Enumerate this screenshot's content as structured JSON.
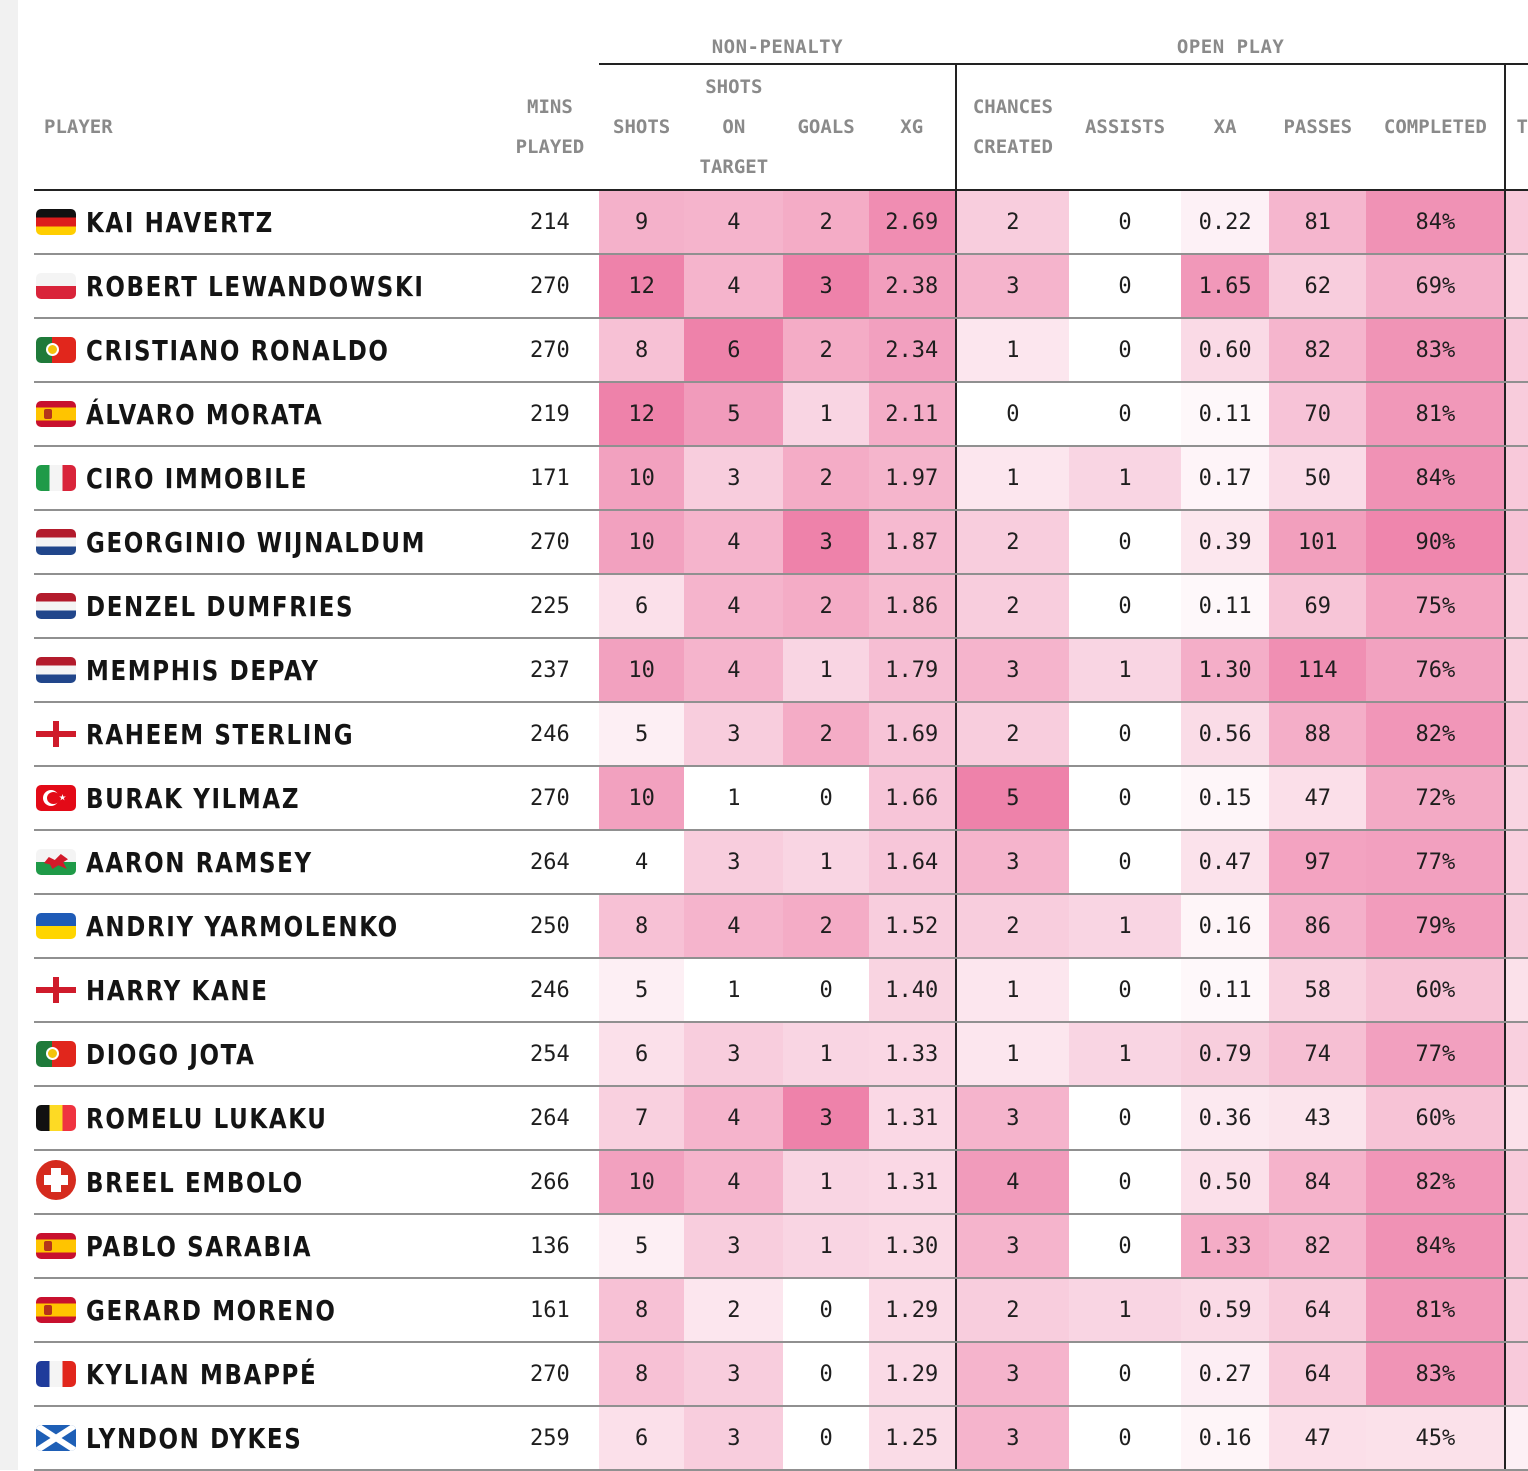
{
  "header": {
    "group_nonpenalty": "NON-PENALTY",
    "group_openplay": "OPEN PLAY",
    "player": "PLAYER",
    "mins": [
      "MINS",
      "PLAYED"
    ],
    "shots": "SHOTS",
    "sot": [
      "SHOTS",
      "ON",
      "TARGET"
    ],
    "goals": "GOALS",
    "xg": "XG",
    "chances": [
      "CHANCES",
      "CREATED"
    ],
    "assists": "ASSISTS",
    "xa": "XA",
    "passes": "PASSES",
    "completed": "COMPLETED",
    "cutoff": "T"
  },
  "rows": [
    {
      "name": "KAI HAVERTZ",
      "flag": "germany",
      "mins": "214",
      "shots": "9",
      "sot": "4",
      "goals": "2",
      "xg": "2.69",
      "chances": "2",
      "assists": "0",
      "xa": "0.22",
      "passes": "81",
      "completed": "84%"
    },
    {
      "name": "ROBERT LEWANDOWSKI",
      "flag": "poland",
      "mins": "270",
      "shots": "12",
      "sot": "4",
      "goals": "3",
      "xg": "2.38",
      "chances": "3",
      "assists": "0",
      "xa": "1.65",
      "passes": "62",
      "completed": "69%"
    },
    {
      "name": "CRISTIANO RONALDO",
      "flag": "portugal",
      "mins": "270",
      "shots": "8",
      "sot": "6",
      "goals": "2",
      "xg": "2.34",
      "chances": "1",
      "assists": "0",
      "xa": "0.60",
      "passes": "82",
      "completed": "83%"
    },
    {
      "name": "ÁLVARO MORATA",
      "flag": "spain",
      "mins": "219",
      "shots": "12",
      "sot": "5",
      "goals": "1",
      "xg": "2.11",
      "chances": "0",
      "assists": "0",
      "xa": "0.11",
      "passes": "70",
      "completed": "81%"
    },
    {
      "name": "CIRO IMMOBILE",
      "flag": "italy",
      "mins": "171",
      "shots": "10",
      "sot": "3",
      "goals": "2",
      "xg": "1.97",
      "chances": "1",
      "assists": "1",
      "xa": "0.17",
      "passes": "50",
      "completed": "84%"
    },
    {
      "name": "GEORGINIO WIJNALDUM",
      "flag": "netherlands",
      "mins": "270",
      "shots": "10",
      "sot": "4",
      "goals": "3",
      "xg": "1.87",
      "chances": "2",
      "assists": "0",
      "xa": "0.39",
      "passes": "101",
      "completed": "90%"
    },
    {
      "name": "DENZEL DUMFRIES",
      "flag": "netherlands",
      "mins": "225",
      "shots": "6",
      "sot": "4",
      "goals": "2",
      "xg": "1.86",
      "chances": "2",
      "assists": "0",
      "xa": "0.11",
      "passes": "69",
      "completed": "75%"
    },
    {
      "name": "MEMPHIS DEPAY",
      "flag": "netherlands",
      "mins": "237",
      "shots": "10",
      "sot": "4",
      "goals": "1",
      "xg": "1.79",
      "chances": "3",
      "assists": "1",
      "xa": "1.30",
      "passes": "114",
      "completed": "76%"
    },
    {
      "name": "RAHEEM STERLING",
      "flag": "england",
      "mins": "246",
      "shots": "5",
      "sot": "3",
      "goals": "2",
      "xg": "1.69",
      "chances": "2",
      "assists": "0",
      "xa": "0.56",
      "passes": "88",
      "completed": "82%"
    },
    {
      "name": "BURAK YILMAZ",
      "flag": "turkey",
      "mins": "270",
      "shots": "10",
      "sot": "1",
      "goals": "0",
      "xg": "1.66",
      "chances": "5",
      "assists": "0",
      "xa": "0.15",
      "passes": "47",
      "completed": "72%"
    },
    {
      "name": "AARON RAMSEY",
      "flag": "wales",
      "mins": "264",
      "shots": "4",
      "sot": "3",
      "goals": "1",
      "xg": "1.64",
      "chances": "3",
      "assists": "0",
      "xa": "0.47",
      "passes": "97",
      "completed": "77%"
    },
    {
      "name": "ANDRIY YARMOLENKO",
      "flag": "ukraine",
      "mins": "250",
      "shots": "8",
      "sot": "4",
      "goals": "2",
      "xg": "1.52",
      "chances": "2",
      "assists": "1",
      "xa": "0.16",
      "passes": "86",
      "completed": "79%"
    },
    {
      "name": "HARRY KANE",
      "flag": "england",
      "mins": "246",
      "shots": "5",
      "sot": "1",
      "goals": "0",
      "xg": "1.40",
      "chances": "1",
      "assists": "0",
      "xa": "0.11",
      "passes": "58",
      "completed": "60%"
    },
    {
      "name": "DIOGO JOTA",
      "flag": "portugal",
      "mins": "254",
      "shots": "6",
      "sot": "3",
      "goals": "1",
      "xg": "1.33",
      "chances": "1",
      "assists": "1",
      "xa": "0.79",
      "passes": "74",
      "completed": "77%"
    },
    {
      "name": "ROMELU LUKAKU",
      "flag": "belgium",
      "mins": "264",
      "shots": "7",
      "sot": "4",
      "goals": "3",
      "xg": "1.31",
      "chances": "3",
      "assists": "0",
      "xa": "0.36",
      "passes": "43",
      "completed": "60%"
    },
    {
      "name": "BREEL EMBOLO",
      "flag": "switzerland",
      "mins": "266",
      "shots": "10",
      "sot": "4",
      "goals": "1",
      "xg": "1.31",
      "chances": "4",
      "assists": "0",
      "xa": "0.50",
      "passes": "84",
      "completed": "82%"
    },
    {
      "name": "PABLO SARABIA",
      "flag": "spain",
      "mins": "136",
      "shots": "5",
      "sot": "3",
      "goals": "1",
      "xg": "1.30",
      "chances": "3",
      "assists": "0",
      "xa": "1.33",
      "passes": "82",
      "completed": "84%"
    },
    {
      "name": "GERARD MORENO",
      "flag": "spain",
      "mins": "161",
      "shots": "8",
      "sot": "2",
      "goals": "0",
      "xg": "1.29",
      "chances": "2",
      "assists": "1",
      "xa": "0.59",
      "passes": "64",
      "completed": "81%"
    },
    {
      "name": "KYLIAN MBAPPÉ",
      "flag": "france",
      "mins": "270",
      "shots": "8",
      "sot": "3",
      "goals": "0",
      "xg": "1.29",
      "chances": "3",
      "assists": "0",
      "xa": "0.27",
      "passes": "64",
      "completed": "83%"
    },
    {
      "name": "LYNDON DYKES",
      "flag": "scotland",
      "mins": "259",
      "shots": "6",
      "sot": "3",
      "goals": "0",
      "xg": "1.25",
      "chances": "3",
      "assists": "0",
      "xa": "0.16",
      "passes": "47",
      "completed": "45%"
    }
  ],
  "colors": {
    "heat_max": "#ee82aa",
    "heat_min": "#ffffff",
    "divider": "#222222",
    "row_border": "#909090",
    "header_text": "#8a8a8a"
  }
}
